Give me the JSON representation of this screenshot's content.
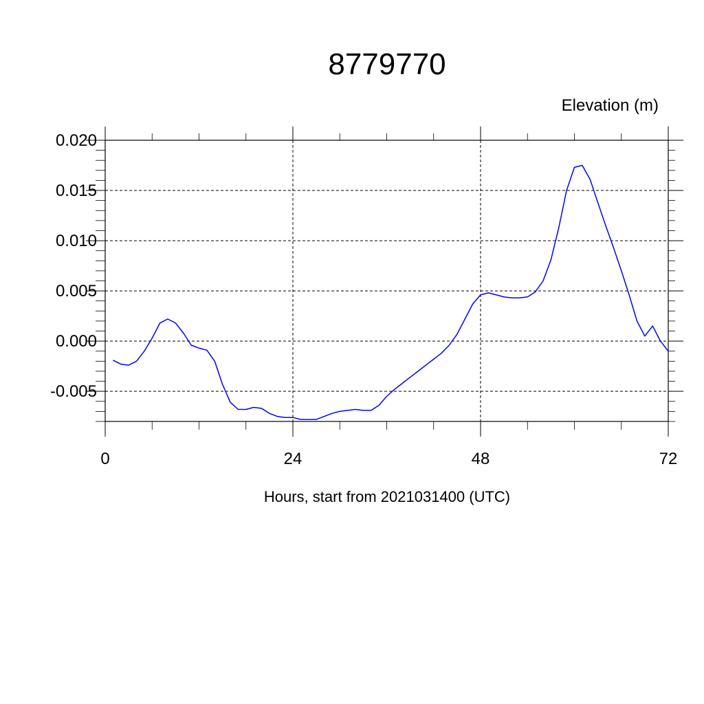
{
  "chart_data": {
    "type": "line",
    "title": "8779770",
    "ylabel": "Elevation (m)",
    "xlabel": "Hours, start from 2021031400 (UTC)",
    "xlim": [
      0,
      72
    ],
    "ylim": [
      -0.008,
      0.02
    ],
    "xticks": [
      0,
      24,
      48,
      72
    ],
    "xtick_labels": [
      "0",
      "24",
      "48",
      "72"
    ],
    "yticks": [
      -0.005,
      0.0,
      0.005,
      0.01,
      0.015,
      0.02
    ],
    "ytick_labels": [
      "-0.005",
      "0.000",
      "0.005",
      "0.010",
      "0.015",
      "0.020"
    ],
    "grid": true,
    "colors": {
      "series": "#0000ff",
      "axis": "#000000",
      "grid": "#000000"
    },
    "series": [
      {
        "x": [
          1,
          2,
          3,
          4,
          5,
          6,
          7,
          8,
          9,
          10,
          11,
          12,
          13,
          14,
          15,
          16,
          17,
          18,
          19,
          20,
          21,
          22,
          23,
          24,
          25,
          26,
          27,
          28,
          29,
          30,
          31,
          32,
          33,
          34,
          35,
          36,
          37,
          38,
          39,
          40,
          41,
          42,
          43,
          44,
          45,
          46,
          47,
          48,
          49,
          50,
          51,
          52,
          53,
          54,
          55,
          56,
          57,
          58,
          59,
          60,
          61,
          62,
          63,
          64,
          65,
          66,
          67,
          68,
          69,
          70,
          71,
          72
        ],
        "values": [
          -0.0019,
          -0.0023,
          -0.0024,
          -0.002,
          -0.001,
          0.0003,
          0.0018,
          0.0022,
          0.0018,
          0.0008,
          -0.0004,
          -0.0007,
          -0.0009,
          -0.002,
          -0.0043,
          -0.0061,
          -0.0068,
          -0.0068,
          -0.0066,
          -0.0067,
          -0.0072,
          -0.0075,
          -0.0076,
          -0.0076,
          -0.0078,
          -0.0078,
          -0.0078,
          -0.0075,
          -0.0072,
          -0.007,
          -0.0069,
          -0.0068,
          -0.0069,
          -0.0069,
          -0.0064,
          -0.0055,
          -0.0048,
          -0.0042,
          -0.0036,
          -0.003,
          -0.0024,
          -0.0018,
          -0.0012,
          -0.0004,
          0.0007,
          0.0022,
          0.0037,
          0.0046,
          0.0048,
          0.0046,
          0.0044,
          0.0043,
          0.0043,
          0.0044,
          0.0049,
          0.006,
          0.0081,
          0.0113,
          0.015,
          0.0173,
          0.0175,
          0.0161,
          0.0138,
          0.0115,
          0.0093,
          0.007,
          0.0046,
          0.002,
          0.0005,
          0.0015,
          0.0,
          -0.001
        ]
      }
    ]
  }
}
